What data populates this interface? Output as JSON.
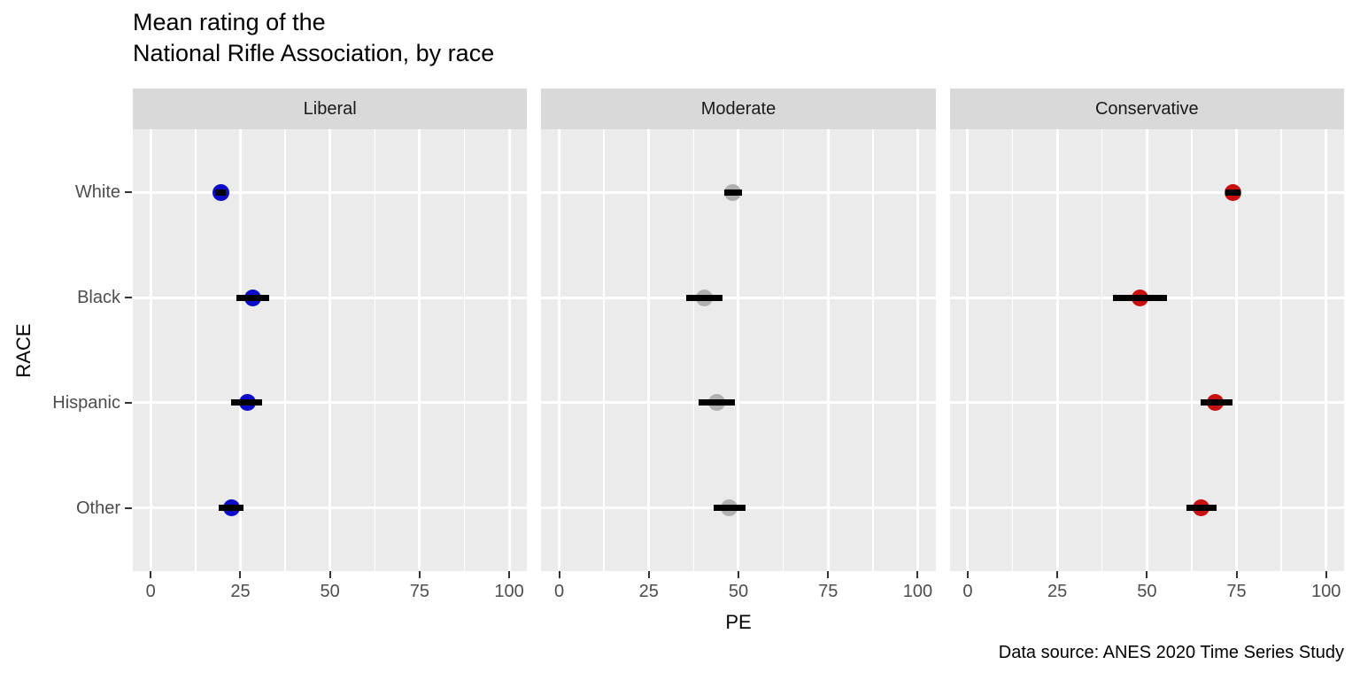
{
  "chart_data": {
    "type": "scatter",
    "title": "Mean rating of the\nNational Rifle Association, by race",
    "xlabel": "PE",
    "ylabel": "RACE",
    "caption": "Data source: ANES 2020 Time Series Study",
    "xlim": [
      -5,
      105
    ],
    "x_ticks": [
      0,
      25,
      50,
      75,
      100
    ],
    "x_minor": [
      12.5,
      37.5,
      62.5,
      87.5
    ],
    "categories": [
      "White",
      "Black",
      "Hispanic",
      "Other"
    ],
    "legend": "none",
    "grid": "on",
    "facets": [
      {
        "label": "Liberal",
        "color": "#0D0DC9",
        "points": [
          {
            "category": "White",
            "pe": 19.5,
            "lo": 18.0,
            "hi": 21.0
          },
          {
            "category": "Black",
            "pe": 28.5,
            "lo": 24.0,
            "hi": 33.0
          },
          {
            "category": "Hispanic",
            "pe": 27.0,
            "lo": 22.5,
            "hi": 31.0
          },
          {
            "category": "Other",
            "pe": 22.5,
            "lo": 19.0,
            "hi": 26.0
          }
        ]
      },
      {
        "label": "Moderate",
        "color": "#B0B0B0",
        "points": [
          {
            "category": "White",
            "pe": 48.5,
            "lo": 46.0,
            "hi": 51.0
          },
          {
            "category": "Black",
            "pe": 40.5,
            "lo": 35.5,
            "hi": 45.5
          },
          {
            "category": "Hispanic",
            "pe": 44.0,
            "lo": 39.0,
            "hi": 49.0
          },
          {
            "category": "Other",
            "pe": 47.5,
            "lo": 43.0,
            "hi": 52.0
          }
        ]
      },
      {
        "label": "Conservative",
        "color": "#C91010",
        "points": [
          {
            "category": "White",
            "pe": 74.0,
            "lo": 72.0,
            "hi": 76.0
          },
          {
            "category": "Black",
            "pe": 48.0,
            "lo": 40.5,
            "hi": 55.5
          },
          {
            "category": "Hispanic",
            "pe": 69.0,
            "lo": 65.0,
            "hi": 74.0
          },
          {
            "category": "Other",
            "pe": 65.0,
            "lo": 61.0,
            "hi": 69.5
          }
        ]
      }
    ],
    "colors": {
      "panel_bg": "#EBEBEB",
      "strip_bg": "#D9D9D9",
      "grid": "#FFFFFF",
      "errorbar": "#000000",
      "tick": "#333333",
      "tick_label": "#4D4D4D",
      "strip_text": "#1A1A1A"
    }
  }
}
